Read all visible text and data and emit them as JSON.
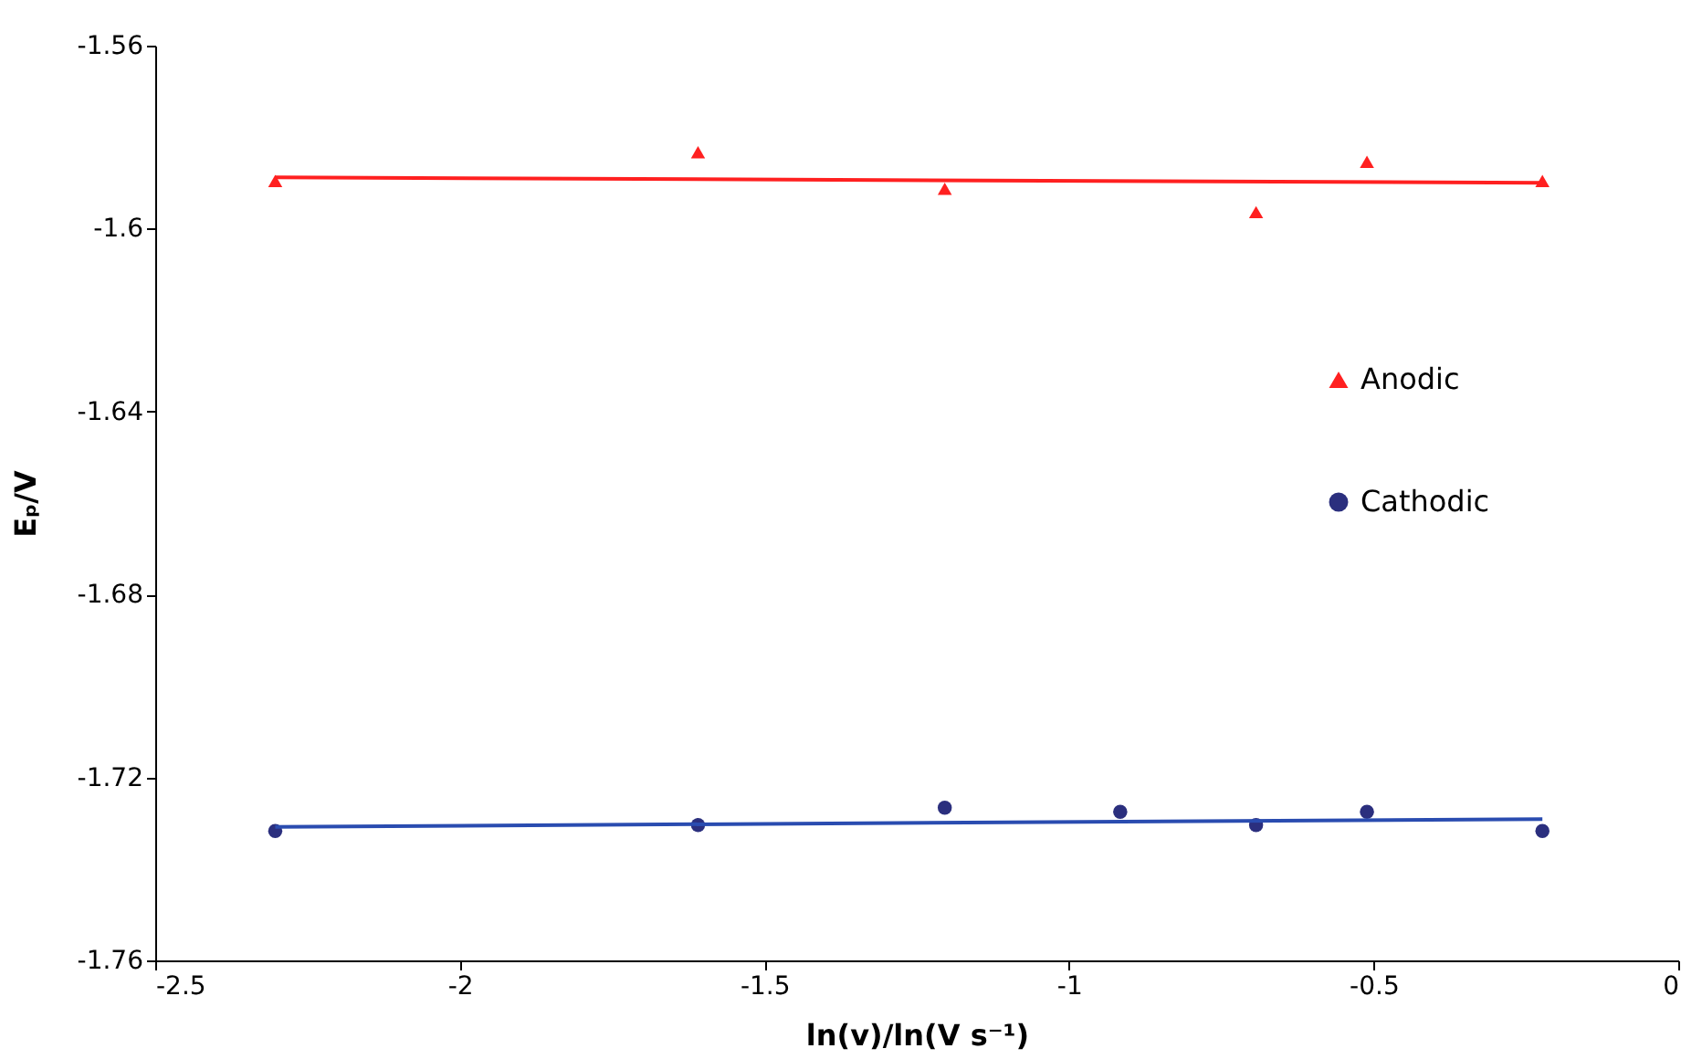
{
  "chart_data": {
    "type": "scatter",
    "xlabel": "ln(v)/ln(V s⁻¹)",
    "ylabel": "Eₚ/V",
    "x": [
      -2.303,
      -1.609,
      -1.204,
      -0.916,
      -0.693,
      -0.511,
      -0.223
    ],
    "series": [
      {
        "name": "Anodic",
        "marker": "triangle",
        "color": "#ff2020",
        "x": [
          -2.303,
          -1.609,
          -1.204,
          -0.693,
          -0.511,
          -0.223
        ],
        "values": [
          -1.5896,
          -1.5833,
          -1.5913,
          -1.5964,
          -1.5854,
          -1.5896
        ]
      },
      {
        "name": "Cathodic",
        "marker": "circle",
        "color": "#2b2f7e",
        "values": [
          -1.7317,
          -1.7304,
          -1.7266,
          -1.7275,
          -1.7304,
          -1.7275,
          -1.7317
        ]
      },
      {
        "type": "line",
        "color": "#ff2020",
        "x": [
          -2.303,
          -0.223
        ],
        "values": [
          -1.5888,
          -1.59
        ]
      },
      {
        "type": "line",
        "color": "#2a4cb0",
        "x": [
          -2.303,
          -0.223
        ],
        "values": [
          -1.7308,
          -1.7291
        ]
      }
    ],
    "xlim": [
      -2.5,
      0
    ],
    "xticks": [
      -2.5,
      -2,
      -1.5,
      -1,
      -0.5,
      0
    ],
    "ylim": [
      -1.76,
      -1.56
    ],
    "yticks": [
      -1.76,
      -1.72,
      -1.68,
      -1.64,
      -1.6,
      -1.56
    ],
    "grid": false,
    "legend": "right"
  }
}
